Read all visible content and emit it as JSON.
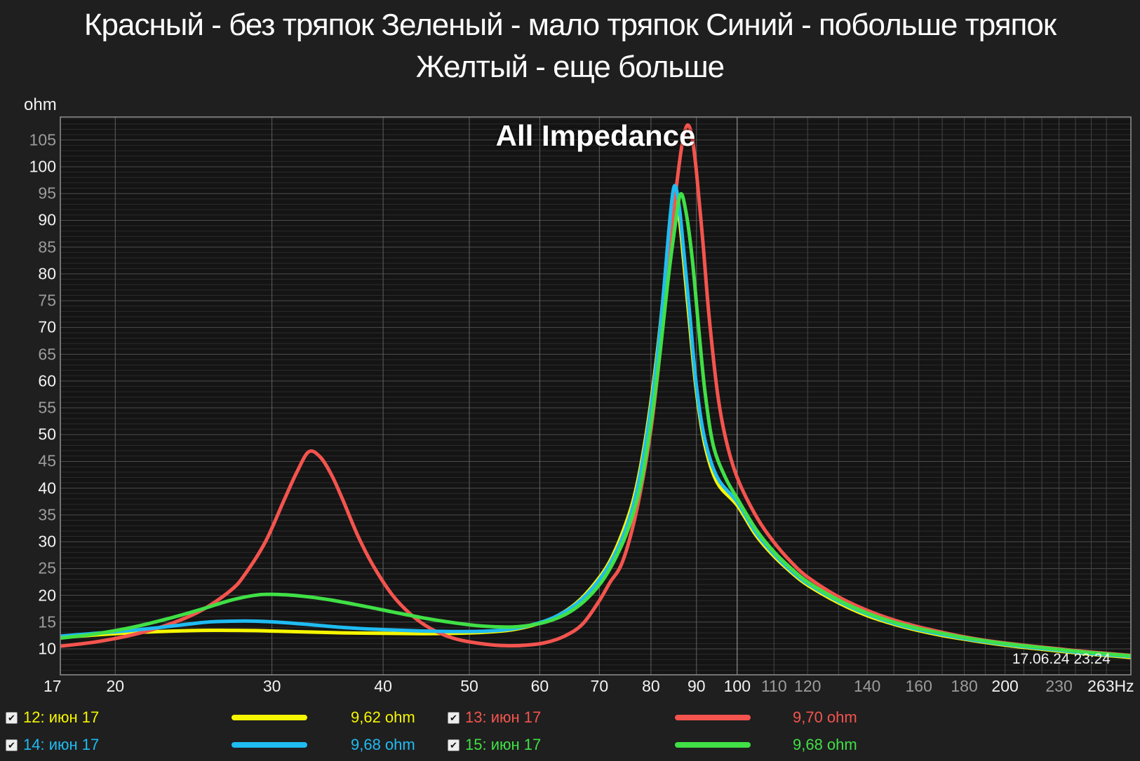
{
  "title": {
    "line1": "Красный - без тряпок Зеленый - мало тряпок Синий - побольше тряпок",
    "line2": "Желтый - еще больше"
  },
  "chart": {
    "heading": "All Impedance",
    "y_unit": "ohm",
    "timestamp": "17.06.24 23:24"
  },
  "colors": {
    "background": "#1f1f1f",
    "plot_background": "#141414",
    "minor_grid": "#2b2b2b",
    "major_grid_h": "#4d4d4d",
    "major_grid_v": "#606060",
    "emphasis_grid_v": "#a8a8a8",
    "minor_grid_v": "#454545",
    "border": "#919191",
    "text_bright": "#f2f2f2",
    "text_dim": "#9c9c9c",
    "series_12": "#f6f600",
    "series_13": "#f4544e",
    "series_14": "#1fbcf2",
    "series_15": "#40e046"
  },
  "chart_data": {
    "type": "line",
    "title": "All Impedance",
    "x_axis": {
      "scale": "log",
      "unit": "Hz",
      "view_min": 17.35,
      "view_max": 277,
      "labeled_ticks": [
        {
          "f": 17,
          "label": "17",
          "bright": true
        },
        {
          "f": 20,
          "label": "20",
          "bright": true
        },
        {
          "f": 30,
          "label": "30",
          "bright": true
        },
        {
          "f": 40,
          "label": "40",
          "bright": true
        },
        {
          "f": 50,
          "label": "50",
          "bright": true
        },
        {
          "f": 60,
          "label": "60",
          "bright": true
        },
        {
          "f": 70,
          "label": "70",
          "bright": true
        },
        {
          "f": 80,
          "label": "80",
          "bright": true
        },
        {
          "f": 90,
          "label": "90",
          "bright": true
        },
        {
          "f": 100,
          "label": "100",
          "bright": true
        },
        {
          "f": 110,
          "label": "110",
          "bright": false
        },
        {
          "f": 120,
          "label": "120",
          "bright": false
        },
        {
          "f": 140,
          "label": "140",
          "bright": false
        },
        {
          "f": 160,
          "label": "160",
          "bright": false
        },
        {
          "f": 180,
          "label": "180",
          "bright": false
        },
        {
          "f": 200,
          "label": "200",
          "bright": true
        },
        {
          "f": 230,
          "label": "230",
          "bright": false
        },
        {
          "f": 263,
          "label": "263Hz",
          "bright": true
        }
      ],
      "major_gridlines": [
        20,
        30,
        40,
        50,
        60,
        70,
        80,
        90,
        100
      ],
      "emphasized_gridline": 100,
      "minor_gridlines": [
        110,
        120,
        130,
        140,
        150,
        160,
        170,
        180,
        190,
        200,
        210,
        220,
        230,
        240,
        250,
        260
      ]
    },
    "y_axis": {
      "unit": "ohm",
      "view_min": 5.2,
      "view_max": 109.3,
      "label_min": 10,
      "label_max": 105,
      "label_step": 5,
      "minor_step": 1,
      "grid": true
    },
    "legend_position": "bottom",
    "series": [
      {
        "id": "12",
        "name": "12: июн 17",
        "color_key": "series_12",
        "dc_value": "9,62 ohm",
        "points": [
          [
            17,
            12.0
          ],
          [
            19,
            12.6
          ],
          [
            21,
            13.05
          ],
          [
            23,
            13.3
          ],
          [
            25,
            13.45
          ],
          [
            27,
            13.45
          ],
          [
            29,
            13.4
          ],
          [
            32,
            13.2
          ],
          [
            36,
            13.0
          ],
          [
            40,
            12.9
          ],
          [
            44,
            12.85
          ],
          [
            48,
            12.9
          ],
          [
            52,
            13.1
          ],
          [
            56,
            13.6
          ],
          [
            60,
            14.8
          ],
          [
            63,
            16.3
          ],
          [
            66,
            18.6
          ],
          [
            69,
            22.0
          ],
          [
            72,
            26.5
          ],
          [
            75,
            33.5
          ],
          [
            77,
            40
          ],
          [
            79,
            50
          ],
          [
            81,
            63
          ],
          [
            82.5,
            75
          ],
          [
            84,
            89
          ],
          [
            84.9,
            94.8
          ],
          [
            86,
            91
          ],
          [
            87,
            83
          ],
          [
            88.5,
            70
          ],
          [
            90,
            58
          ],
          [
            92,
            48
          ],
          [
            95,
            41
          ],
          [
            100,
            36.8
          ],
          [
            105,
            31.2
          ],
          [
            110,
            27.3
          ],
          [
            115,
            24.3
          ],
          [
            120,
            21.9
          ],
          [
            130,
            18.6
          ],
          [
            140,
            16.2
          ],
          [
            150,
            14.6
          ],
          [
            160,
            13.4
          ],
          [
            170,
            12.5
          ],
          [
            180,
            11.8
          ],
          [
            190,
            11.2
          ],
          [
            200,
            10.7
          ],
          [
            215,
            10.1
          ],
          [
            230,
            9.6
          ],
          [
            246,
            9.1
          ],
          [
            263,
            8.7
          ],
          [
            277,
            8.4
          ]
        ]
      },
      {
        "id": "13",
        "name": "13: июн 17",
        "color_key": "series_13",
        "dc_value": "9,70 ohm",
        "points": [
          [
            17,
            10.35
          ],
          [
            19,
            11.3
          ],
          [
            21,
            12.7
          ],
          [
            23,
            14.6
          ],
          [
            25,
            17.2
          ],
          [
            27,
            21.0
          ],
          [
            28,
            24.0
          ],
          [
            29.5,
            30
          ],
          [
            31,
            38
          ],
          [
            32,
            43
          ],
          [
            33,
            46.8
          ],
          [
            34,
            45.8
          ],
          [
            35,
            42.5
          ],
          [
            36,
            38
          ],
          [
            37.5,
            31
          ],
          [
            39,
            25.5
          ],
          [
            41,
            20.0
          ],
          [
            43,
            16.4
          ],
          [
            45,
            14.0
          ],
          [
            47,
            12.5
          ],
          [
            49,
            11.6
          ],
          [
            52,
            10.9
          ],
          [
            55,
            10.6
          ],
          [
            58,
            10.7
          ],
          [
            61,
            11.2
          ],
          [
            64,
            12.4
          ],
          [
            67,
            14.6
          ],
          [
            70,
            19.0
          ],
          [
            72,
            22.5
          ],
          [
            74,
            25.5
          ],
          [
            76,
            31.5
          ],
          [
            78,
            40
          ],
          [
            80,
            51
          ],
          [
            81.5,
            62
          ],
          [
            83,
            75
          ],
          [
            84.5,
            89
          ],
          [
            86,
            100
          ],
          [
            87,
            105.5
          ],
          [
            88,
            107.8
          ],
          [
            89,
            105.5
          ],
          [
            90,
            99
          ],
          [
            91.5,
            86
          ],
          [
            93,
            72
          ],
          [
            95,
            58
          ],
          [
            97,
            49.5
          ],
          [
            100,
            42
          ],
          [
            105,
            34.8
          ],
          [
            110,
            29.9
          ],
          [
            115,
            26.2
          ],
          [
            120,
            23.4
          ],
          [
            130,
            19.7
          ],
          [
            140,
            17.2
          ],
          [
            150,
            15.4
          ],
          [
            160,
            14.1
          ],
          [
            170,
            13.1
          ],
          [
            180,
            12.25
          ],
          [
            190,
            11.6
          ],
          [
            200,
            11.1
          ],
          [
            215,
            10.5
          ],
          [
            230,
            10.0
          ],
          [
            246,
            9.5
          ],
          [
            263,
            9.1
          ],
          [
            277,
            8.8
          ]
        ]
      },
      {
        "id": "14",
        "name": "14: июн 17",
        "color_key": "series_14",
        "dc_value": "9,68 ohm",
        "points": [
          [
            17,
            12.25
          ],
          [
            19,
            12.9
          ],
          [
            21,
            13.5
          ],
          [
            23,
            14.2
          ],
          [
            25,
            14.9
          ],
          [
            26,
            15.1
          ],
          [
            28,
            15.2
          ],
          [
            30,
            15.05
          ],
          [
            33,
            14.55
          ],
          [
            36,
            14.0
          ],
          [
            40,
            13.6
          ],
          [
            44,
            13.35
          ],
          [
            48,
            13.25
          ],
          [
            52,
            13.3
          ],
          [
            56,
            13.75
          ],
          [
            60,
            14.9
          ],
          [
            63,
            16.3
          ],
          [
            66,
            18.4
          ],
          [
            69,
            21.6
          ],
          [
            72,
            26.0
          ],
          [
            75,
            32.5
          ],
          [
            77,
            39
          ],
          [
            79,
            49
          ],
          [
            81,
            62
          ],
          [
            82.5,
            75
          ],
          [
            84,
            90
          ],
          [
            85,
            96.4
          ],
          [
            86,
            93
          ],
          [
            87,
            85
          ],
          [
            88.5,
            72
          ],
          [
            90,
            59
          ],
          [
            92,
            49
          ],
          [
            95,
            42
          ],
          [
            100,
            37.4
          ],
          [
            105,
            31.7
          ],
          [
            110,
            27.7
          ],
          [
            115,
            24.6
          ],
          [
            120,
            22.2
          ],
          [
            130,
            18.9
          ],
          [
            140,
            16.5
          ],
          [
            150,
            14.8
          ],
          [
            160,
            13.6
          ],
          [
            170,
            12.7
          ],
          [
            180,
            11.95
          ],
          [
            190,
            11.35
          ],
          [
            200,
            10.85
          ],
          [
            215,
            10.25
          ],
          [
            230,
            9.75
          ],
          [
            246,
            9.25
          ],
          [
            263,
            8.85
          ],
          [
            277,
            8.6
          ]
        ]
      },
      {
        "id": "15",
        "name": "15: июн 17",
        "color_key": "series_15",
        "dc_value": "9,68 ohm",
        "points": [
          [
            17,
            11.85
          ],
          [
            19,
            12.8
          ],
          [
            21,
            14.1
          ],
          [
            23,
            15.7
          ],
          [
            25,
            17.4
          ],
          [
            27,
            19.1
          ],
          [
            29,
            20.1
          ],
          [
            31,
            20.1
          ],
          [
            33,
            19.7
          ],
          [
            35,
            19.1
          ],
          [
            38,
            18.0
          ],
          [
            41,
            16.9
          ],
          [
            44,
            15.9
          ],
          [
            47,
            15.1
          ],
          [
            50,
            14.5
          ],
          [
            53,
            14.15
          ],
          [
            56,
            14.1
          ],
          [
            59,
            14.5
          ],
          [
            62,
            15.4
          ],
          [
            65,
            17.0
          ],
          [
            68,
            19.6
          ],
          [
            71,
            23.4
          ],
          [
            74,
            29.0
          ],
          [
            76,
            34
          ],
          [
            78,
            41
          ],
          [
            80,
            52
          ],
          [
            82,
            66
          ],
          [
            83.5,
            78
          ],
          [
            85,
            88
          ],
          [
            86.3,
            94.8
          ],
          [
            87.5,
            92
          ],
          [
            89,
            83
          ],
          [
            90.5,
            70
          ],
          [
            92,
            58
          ],
          [
            94,
            48
          ],
          [
            97,
            42
          ],
          [
            100,
            38.1
          ],
          [
            105,
            32.3
          ],
          [
            110,
            28.1
          ],
          [
            115,
            25.0
          ],
          [
            120,
            22.5
          ],
          [
            130,
            19.1
          ],
          [
            140,
            16.7
          ],
          [
            150,
            15.0
          ],
          [
            160,
            13.8
          ],
          [
            170,
            12.9
          ],
          [
            180,
            12.1
          ],
          [
            190,
            11.5
          ],
          [
            200,
            11.0
          ],
          [
            215,
            10.4
          ],
          [
            230,
            9.9
          ],
          [
            246,
            9.4
          ],
          [
            263,
            9.0
          ],
          [
            277,
            8.7
          ]
        ]
      }
    ],
    "draw_order": [
      "12",
      "13",
      "14",
      "15"
    ]
  },
  "legend": {
    "checkbox_glyph": "✔",
    "items": [
      {
        "series": "12",
        "label": "12: июн 17",
        "value": "9,62 ohm",
        "checked": true,
        "row": 0,
        "col": 0
      },
      {
        "series": "13",
        "label": "13: июн 17",
        "value": "9,70 ohm",
        "checked": true,
        "row": 0,
        "col": 1
      },
      {
        "series": "14",
        "label": "14: июн 17",
        "value": "9,68 ohm",
        "checked": true,
        "row": 1,
        "col": 0
      },
      {
        "series": "15",
        "label": "15: июн 17",
        "value": "9,68 ohm",
        "checked": true,
        "row": 1,
        "col": 1
      }
    ]
  }
}
